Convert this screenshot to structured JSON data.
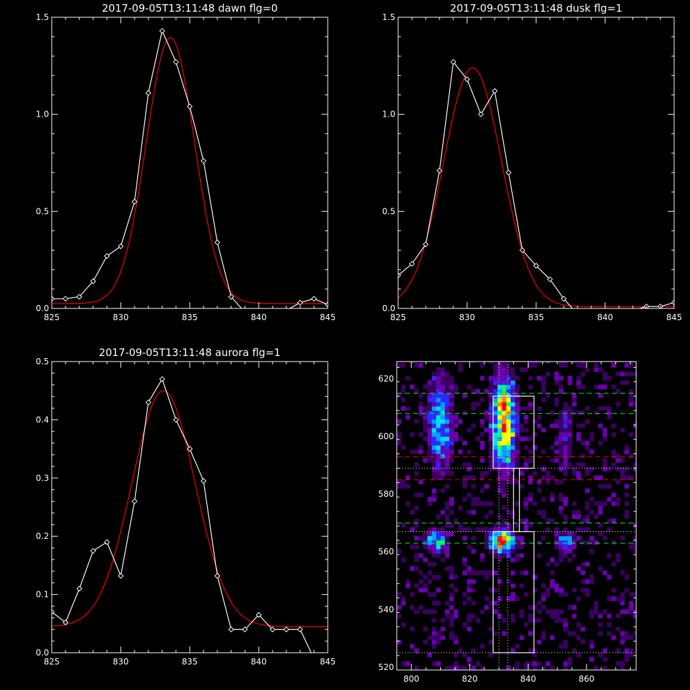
{
  "chart_data": [
    {
      "type": "line",
      "title": "2017-09-05T13:11:48 dawn flg=0",
      "xlim": [
        825,
        845
      ],
      "ylim": [
        0,
        1.5
      ],
      "xticks": [
        "825",
        "830",
        "835",
        "840",
        "845"
      ],
      "yticks": [
        "0.0",
        "0.5",
        "1.0",
        "1.5"
      ],
      "series": [
        {
          "style": "white-diamonds",
          "x": [
            825,
            826,
            827,
            828,
            829,
            830,
            831,
            832,
            833,
            834,
            835,
            836,
            837,
            838,
            839,
            840,
            841,
            842,
            843,
            844,
            845
          ],
          "y": [
            0.05,
            0.05,
            0.06,
            0.14,
            0.27,
            0.32,
            0.55,
            1.11,
            1.43,
            1.27,
            1.04,
            0.76,
            0.34,
            0.06,
            -0.02,
            -0.04,
            -0.02,
            -0.01,
            0.03,
            0.05,
            0.02
          ]
        },
        {
          "style": "red-fit",
          "model": {
            "base": 0.025,
            "amp": 1.37,
            "mu": 833.6,
            "sigma": 1.75
          }
        }
      ],
      "colors": {
        "data": "#ffffff",
        "fit": "#ff0000"
      }
    },
    {
      "type": "line",
      "title": "2017-09-05T13:11:48 dusk flg=1",
      "xlim": [
        825,
        845
      ],
      "ylim": [
        0,
        1.5
      ],
      "xticks": [
        "825",
        "830",
        "835",
        "840",
        "845"
      ],
      "yticks": [
        "0.0",
        "0.5",
        "1.0",
        "1.5"
      ],
      "series": [
        {
          "style": "white-diamonds",
          "x": [
            825,
            826,
            827,
            828,
            829,
            830,
            831,
            832,
            833,
            834,
            835,
            836,
            837,
            838,
            839,
            840,
            841,
            842,
            843,
            844,
            845
          ],
          "y": [
            0.17,
            0.23,
            0.33,
            0.71,
            1.27,
            1.18,
            1.0,
            1.12,
            0.7,
            0.3,
            0.22,
            0.15,
            0.05,
            -0.03,
            -0.03,
            -0.01,
            -0.01,
            -0.01,
            0.01,
            0.01,
            0.03
          ]
        },
        {
          "style": "red-fit",
          "model": {
            "base": 0.01,
            "amp": 1.23,
            "mu": 830.4,
            "sigma": 2.1
          }
        }
      ],
      "colors": {
        "data": "#ffffff",
        "fit": "#ff0000"
      }
    },
    {
      "type": "line",
      "title": "2017-09-05T13:11:48 aurora flg=1",
      "xlim": [
        825,
        845
      ],
      "ylim": [
        0,
        0.5
      ],
      "xticks": [
        "825",
        "830",
        "835",
        "840",
        "845"
      ],
      "yticks": [
        "0.0",
        "0.1",
        "0.2",
        "0.3",
        "0.4",
        "0.5"
      ],
      "series": [
        {
          "style": "white-diamonds",
          "x": [
            825,
            826,
            827,
            828,
            829,
            830,
            831,
            832,
            833,
            834,
            835,
            836,
            837,
            838,
            839,
            840,
            841,
            842,
            843,
            844
          ],
          "y": [
            0.07,
            0.052,
            0.11,
            0.175,
            0.19,
            0.132,
            0.26,
            0.43,
            0.47,
            0.4,
            0.35,
            0.295,
            0.132,
            0.04,
            0.04,
            0.065,
            0.04,
            0.04,
            0.04,
            -0.01
          ]
        },
        {
          "style": "red-fit",
          "model": {
            "base": 0.045,
            "amp": 0.405,
            "mu": 833.1,
            "sigma": 2.3
          }
        }
      ],
      "colors": {
        "data": "#ffffff",
        "fit": "#ff0000"
      }
    },
    {
      "type": "heatmap",
      "title": "",
      "xlim": [
        795,
        877
      ],
      "ylim": [
        519,
        626
      ],
      "xticks": [
        "800",
        "820",
        "840",
        "860"
      ],
      "yticks": [
        "520",
        "540",
        "560",
        "580",
        "600",
        "620"
      ],
      "blobs": [
        {
          "x": 831,
          "y": 604,
          "sx": 2.6,
          "sy": 10.0,
          "amp": 0.85
        },
        {
          "x": 831,
          "y": 611,
          "sx": 2.0,
          "sy": 2.5,
          "amp": 0.3
        },
        {
          "x": 809,
          "y": 604,
          "sx": 2.6,
          "sy": 9.5,
          "amp": 0.5
        },
        {
          "x": 830,
          "y": 563,
          "sx": 2.6,
          "sy": 2.4,
          "amp": 1.0
        },
        {
          "x": 808,
          "y": 563,
          "sx": 2.4,
          "sy": 2.6,
          "amp": 0.55
        },
        {
          "x": 852,
          "y": 563,
          "sx": 2.0,
          "sy": 1.8,
          "amp": 0.45
        },
        {
          "x": 852,
          "y": 600,
          "sx": 1.6,
          "sy": 8.0,
          "amp": 0.22
        }
      ],
      "noise": 0.12,
      "colormap": [
        "#000000",
        "#3a0060",
        "#6a00b0",
        "#2a2aff",
        "#00a0ff",
        "#00e0e0",
        "#00ff60",
        "#c0ff00",
        "#ffff00",
        "#ff8000",
        "#ff0000"
      ],
      "overlays": {
        "green_dashed_y": [
          615,
          608,
          570,
          563
        ],
        "red_dashed_y": [
          593,
          585
        ],
        "white_dotted_x": [
          830,
          833
        ],
        "white_dotted_y": [
          589,
          567,
          525
        ],
        "boxes": [
          {
            "x0": 828,
            "x1": 842,
            "y0": 589,
            "y1": 614
          },
          {
            "x0": 835,
            "x1": 837,
            "y0": 567,
            "y1": 589
          },
          {
            "x0": 828,
            "x1": 842,
            "y0": 525,
            "y1": 567
          }
        ],
        "colors": {
          "green": "#00ff00",
          "red": "#ff0000",
          "white": "#ffffff"
        }
      }
    }
  ]
}
